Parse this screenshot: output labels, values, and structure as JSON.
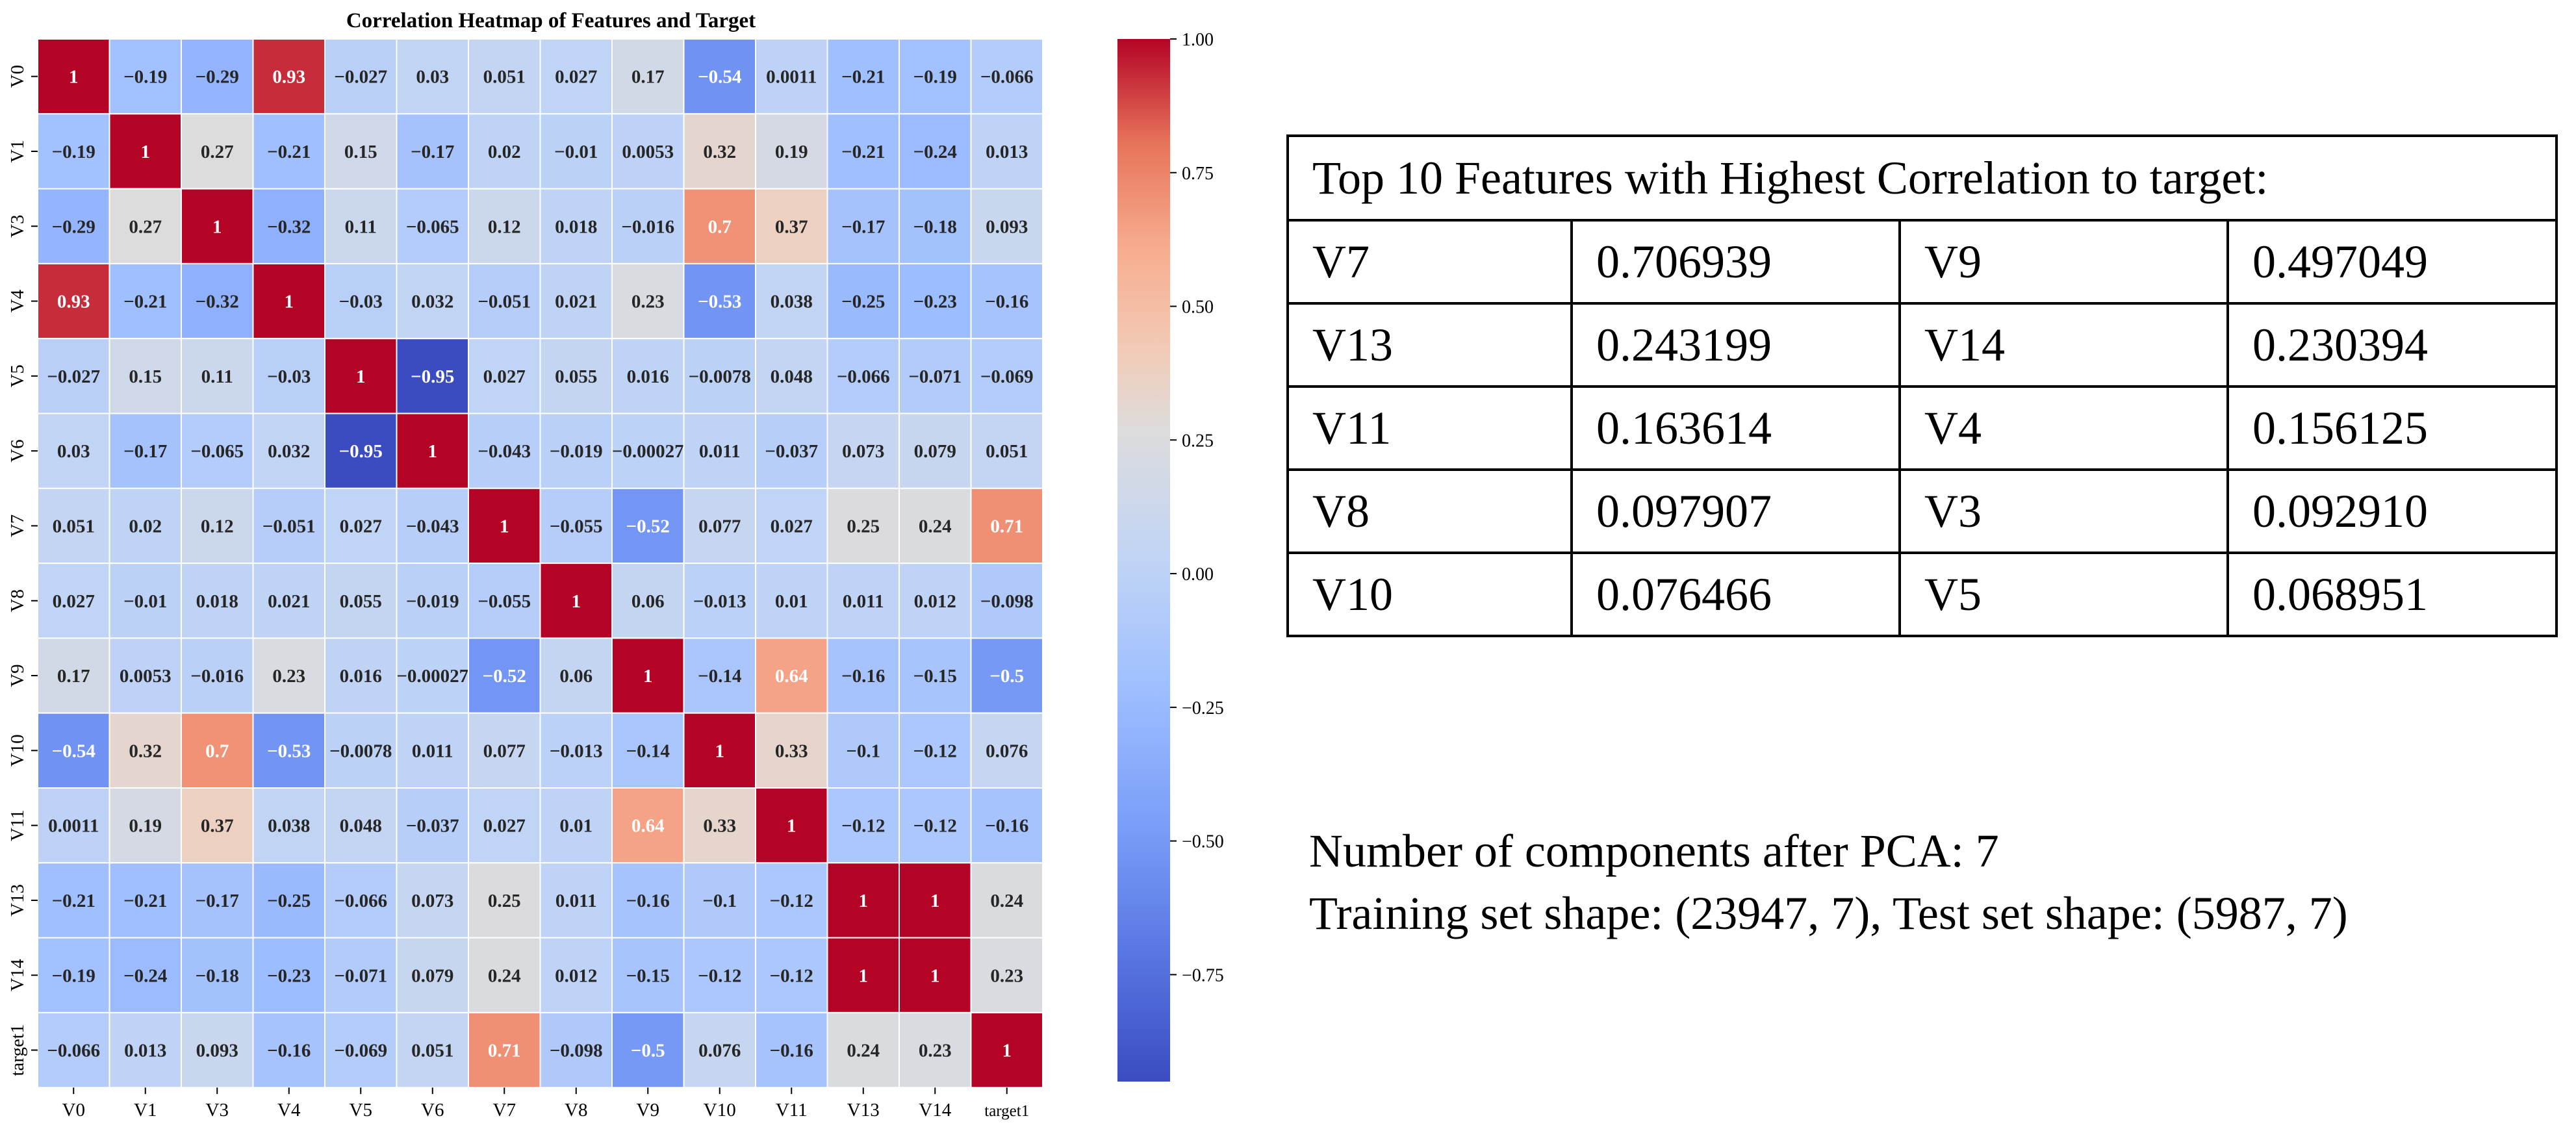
{
  "chart_data": {
    "type": "heatmap",
    "title": "Correlation Heatmap of Features and Target",
    "labels": [
      "V0",
      "V1",
      "V3",
      "V4",
      "V5",
      "V6",
      "V7",
      "V8",
      "V9",
      "V10",
      "V11",
      "V13",
      "V14",
      "target1"
    ],
    "matrix": [
      [
        "1",
        "-0.19",
        "-0.29",
        "0.93",
        "-0.027",
        "0.03",
        "0.051",
        "0.027",
        "0.17",
        "-0.54",
        "0.0011",
        "-0.21",
        "-0.19",
        "-0.066"
      ],
      [
        "-0.19",
        "1",
        "0.27",
        "-0.21",
        "0.15",
        "-0.17",
        "0.02",
        "-0.01",
        "0.0053",
        "0.32",
        "0.19",
        "-0.21",
        "-0.24",
        "0.013"
      ],
      [
        "-0.29",
        "0.27",
        "1",
        "-0.32",
        "0.11",
        "-0.065",
        "0.12",
        "0.018",
        "-0.016",
        "0.7",
        "0.37",
        "-0.17",
        "-0.18",
        "0.093"
      ],
      [
        "0.93",
        "-0.21",
        "-0.32",
        "1",
        "-0.03",
        "0.032",
        "-0.051",
        "0.021",
        "0.23",
        "-0.53",
        "0.038",
        "-0.25",
        "-0.23",
        "-0.16"
      ],
      [
        "-0.027",
        "0.15",
        "0.11",
        "-0.03",
        "1",
        "-0.95",
        "0.027",
        "0.055",
        "0.016",
        "-0.0078",
        "0.048",
        "-0.066",
        "-0.071",
        "-0.069"
      ],
      [
        "0.03",
        "-0.17",
        "-0.065",
        "0.032",
        "-0.95",
        "1",
        "-0.043",
        "-0.019",
        "-0.00027",
        "0.011",
        "-0.037",
        "0.073",
        "0.079",
        "0.051"
      ],
      [
        "0.051",
        "0.02",
        "0.12",
        "-0.051",
        "0.027",
        "-0.043",
        "1",
        "-0.055",
        "-0.52",
        "0.077",
        "0.027",
        "0.25",
        "0.24",
        "0.71"
      ],
      [
        "0.027",
        "-0.01",
        "0.018",
        "0.021",
        "0.055",
        "-0.019",
        "-0.055",
        "1",
        "0.06",
        "-0.013",
        "0.01",
        "0.011",
        "0.012",
        "-0.098"
      ],
      [
        "0.17",
        "0.0053",
        "-0.016",
        "0.23",
        "0.016",
        "-0.00027",
        "-0.52",
        "0.06",
        "1",
        "-0.14",
        "0.64",
        "-0.16",
        "-0.15",
        "-0.5"
      ],
      [
        "-0.54",
        "0.32",
        "0.7",
        "-0.53",
        "-0.0078",
        "0.011",
        "0.077",
        "-0.013",
        "-0.14",
        "1",
        "0.33",
        "-0.1",
        "-0.12",
        "0.076"
      ],
      [
        "0.0011",
        "0.19",
        "0.37",
        "0.038",
        "0.048",
        "-0.037",
        "0.027",
        "0.01",
        "0.64",
        "0.33",
        "1",
        "-0.12",
        "-0.12",
        "-0.16"
      ],
      [
        "-0.21",
        "-0.21",
        "-0.17",
        "-0.25",
        "-0.066",
        "0.073",
        "0.25",
        "0.011",
        "-0.16",
        "-0.1",
        "-0.12",
        "1",
        "1",
        "0.24"
      ],
      [
        "-0.19",
        "-0.24",
        "-0.18",
        "-0.23",
        "-0.071",
        "0.079",
        "0.24",
        "0.012",
        "-0.15",
        "-0.12",
        "-0.12",
        "1",
        "1",
        "0.23"
      ],
      [
        "-0.066",
        "0.013",
        "0.093",
        "-0.16",
        "-0.069",
        "0.051",
        "0.71",
        "-0.098",
        "-0.5",
        "0.076",
        "-0.16",
        "0.24",
        "0.23",
        "1"
      ]
    ],
    "colorbar": {
      "min": -0.95,
      "max": 1.0,
      "ticks": [
        1.0,
        0.75,
        0.5,
        0.25,
        0.0,
        -0.25,
        -0.5,
        -0.75
      ],
      "tick_labels": [
        "1.00",
        "0.75",
        "0.50",
        "0.25",
        "0.00",
        "−0.25",
        "−0.50",
        "−0.75"
      ],
      "colormap": "coolwarm",
      "low_color": "#3b4cc0",
      "mid_color": "#dddddd",
      "high_color": "#b40426"
    }
  },
  "top_features": {
    "title": "Top 10 Features with Highest Correlation to target:",
    "rows": [
      [
        {
          "feature": "V7",
          "value": "0.706939"
        },
        {
          "feature": "V9",
          "value": "0.497049"
        }
      ],
      [
        {
          "feature": "V13",
          "value": "0.243199"
        },
        {
          "feature": "V14",
          "value": "0.230394"
        }
      ],
      [
        {
          "feature": "V11",
          "value": "0.163614"
        },
        {
          "feature": "V4",
          "value": "0.156125"
        }
      ],
      [
        {
          "feature": "V8",
          "value": "0.097907"
        },
        {
          "feature": "V3",
          "value": "0.092910"
        }
      ],
      [
        {
          "feature": "V10",
          "value": "0.076466"
        },
        {
          "feature": "V5",
          "value": "0.068951"
        }
      ]
    ]
  },
  "pca_info": {
    "components_line": "Number of components after PCA: 7",
    "shape_line": "Training set shape: (23947, 7), Test set shape: (5987, 7)"
  }
}
